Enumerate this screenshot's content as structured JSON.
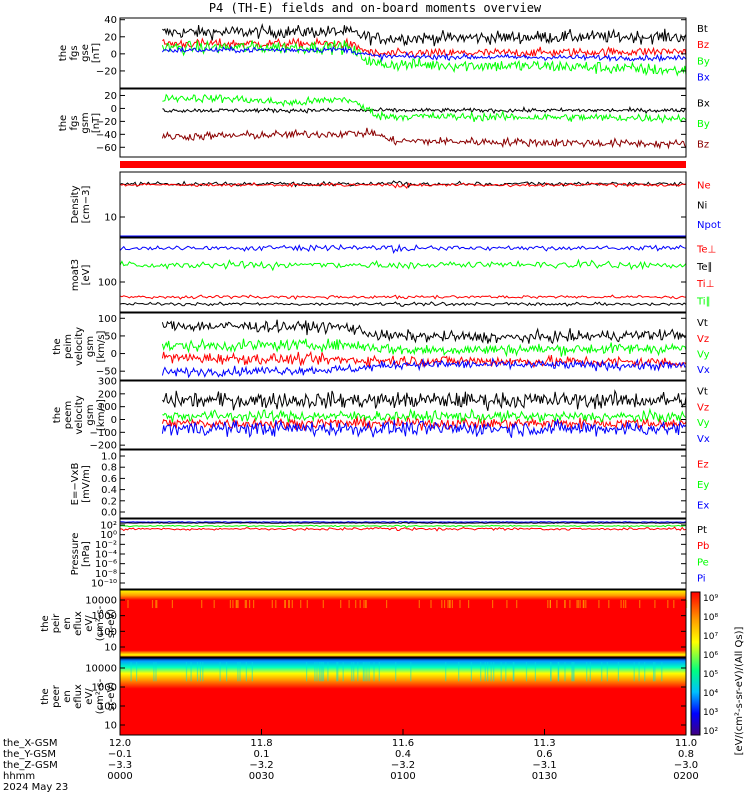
{
  "title": "P4 (TH-E) fields and on-board moments overview",
  "colors": {
    "black": "#000000",
    "red": "#ff0000",
    "green": "#00ff00",
    "blue": "#0000ff",
    "darkred": "#8b0000"
  },
  "chart_data": [
    {
      "type": "line",
      "ylabel": [
        "the",
        "fgs",
        "gse",
        "[nT]"
      ],
      "ylim": [
        -40,
        42
      ],
      "yticks": [
        "40",
        "20",
        "0",
        "−20"
      ],
      "series": [
        {
          "name": "Bt",
          "color": "#000000",
          "levels": [
            [
              0,
              25
            ],
            [
              0.4,
              26
            ],
            [
              0.45,
              18
            ],
            [
              0.8,
              20
            ],
            [
              1,
              20
            ]
          ],
          "noise": 7
        },
        {
          "name": "Bz",
          "color": "#ff0000",
          "levels": [
            [
              0,
              12
            ],
            [
              0.4,
              12
            ],
            [
              0.45,
              0
            ],
            [
              1,
              3
            ]
          ],
          "noise": 5
        },
        {
          "name": "By",
          "color": "#00ff00",
          "levels": [
            [
              0,
              7
            ],
            [
              0.4,
              8
            ],
            [
              0.45,
              -12
            ],
            [
              0.8,
              -15
            ],
            [
              1,
              -20
            ]
          ],
          "noise": 7
        },
        {
          "name": "Bx",
          "color": "#0000ff",
          "levels": [
            [
              0,
              4
            ],
            [
              0.4,
              5
            ],
            [
              0.45,
              -3
            ],
            [
              1,
              -5
            ]
          ],
          "noise": 3
        }
      ]
    },
    {
      "type": "line",
      "ylabel": [
        "the",
        "fgs",
        "gsm",
        "[nT]"
      ],
      "ylim": [
        -75,
        30
      ],
      "yticks": [
        "20",
        "0",
        "−20",
        "−40",
        "−60"
      ],
      "series": [
        {
          "name": "Bx",
          "color": "#000000",
          "levels": [
            [
              0,
              -3
            ],
            [
              1,
              -3
            ]
          ],
          "noise": 3
        },
        {
          "name": "By",
          "color": "#00ff00",
          "levels": [
            [
              0,
              18
            ],
            [
              0.2,
              15
            ],
            [
              0.3,
              8
            ],
            [
              0.4,
              15
            ],
            [
              0.46,
              -12
            ],
            [
              1,
              -15
            ]
          ],
          "noise": 6
        },
        {
          "name": "Bz",
          "color": "#8b0000",
          "levels": [
            [
              0,
              -45
            ],
            [
              0.45,
              -38
            ],
            [
              0.48,
              -50
            ],
            [
              1,
              -55
            ]
          ],
          "noise": 6
        }
      ]
    },
    {
      "type": "line",
      "ylabel": [
        "Density",
        "[cm−3]"
      ],
      "yticks": [
        "10"
      ],
      "series": [
        {
          "name": "Ne",
          "color": "#ff0000"
        },
        {
          "name": "Ni",
          "color": "#000000"
        },
        {
          "name": "Npot",
          "color": "#0000ff"
        }
      ]
    },
    {
      "type": "line",
      "ylabel": [
        "moat3",
        "[eV]"
      ],
      "yticks": [
        "100"
      ],
      "series": [
        {
          "name": "Te⊥",
          "color": "#ff0000"
        },
        {
          "name": "Te∥",
          "color": "#000000"
        },
        {
          "name": "Ti⊥",
          "color": "#ff0000"
        },
        {
          "name": "Ti∥",
          "color": "#00ff00"
        }
      ]
    },
    {
      "type": "line",
      "ylabel": [
        "the",
        "peim",
        "velocity",
        "gsm",
        "[km/s]"
      ],
      "ylim": [
        -75,
        115
      ],
      "yticks": [
        "100",
        "50",
        "0",
        "−50"
      ],
      "series": [
        {
          "name": "Vt",
          "color": "#000000",
          "levels": [
            [
              0,
              80
            ],
            [
              0.4,
              75
            ],
            [
              0.46,
              50
            ],
            [
              0.7,
              45
            ],
            [
              1,
              55
            ]
          ],
          "noise": 15
        },
        {
          "name": "Vz",
          "color": "#ff0000",
          "levels": [
            [
              0,
              -10
            ],
            [
              0.5,
              -20
            ],
            [
              1,
              -25
            ]
          ],
          "noise": 15
        },
        {
          "name": "Vy",
          "color": "#00ff00",
          "levels": [
            [
              0,
              20
            ],
            [
              0.4,
              25
            ],
            [
              0.5,
              10
            ],
            [
              1,
              15
            ]
          ],
          "noise": 15
        },
        {
          "name": "Vx",
          "color": "#0000ff",
          "levels": [
            [
              0,
              -55
            ],
            [
              0.4,
              -45
            ],
            [
              0.5,
              -30
            ],
            [
              1,
              -35
            ]
          ],
          "noise": 12
        }
      ]
    },
    {
      "type": "line",
      "ylabel": [
        "the",
        "peem",
        "velocity",
        "gsm",
        "[km/s]"
      ],
      "ylim": [
        -230,
        300
      ],
      "yticks": [
        "300",
        "200",
        "100",
        "0",
        "−100",
        "−200"
      ],
      "series": [
        {
          "name": "Vt",
          "color": "#000000",
          "levels": [
            [
              0,
              150
            ],
            [
              1,
              150
            ]
          ],
          "noise": 60
        },
        {
          "name": "Vz",
          "color": "#ff0000",
          "levels": [
            [
              0,
              -30
            ],
            [
              1,
              -30
            ]
          ],
          "noise": 40
        },
        {
          "name": "Vy",
          "color": "#00ff00",
          "levels": [
            [
              0,
              30
            ],
            [
              1,
              20
            ]
          ],
          "noise": 40
        },
        {
          "name": "Vx",
          "color": "#0000ff",
          "levels": [
            [
              0,
              -70
            ],
            [
              1,
              -70
            ]
          ],
          "noise": 55
        }
      ]
    },
    {
      "type": "line",
      "ylabel": [
        "E=−VxB",
        "[mV/m]"
      ],
      "ylim": [
        0,
        1
      ],
      "yticks": [
        "1.0",
        "0.8",
        "0.6",
        "0.4",
        "0.2",
        "0.0"
      ],
      "series": [
        {
          "name": "Ez",
          "color": "#ff0000"
        },
        {
          "name": "Ey",
          "color": "#00ff00"
        },
        {
          "name": "Ex",
          "color": "#0000ff"
        }
      ]
    },
    {
      "type": "line",
      "ylabel": [
        "Pressure",
        "[nPa]"
      ],
      "yticks": [
        "10²",
        "10⁰",
        "10⁻²",
        "10⁻⁴",
        "10⁻⁶",
        "10⁻⁸",
        "10⁻¹⁰"
      ],
      "series": [
        {
          "name": "Pt",
          "color": "#000000"
        },
        {
          "name": "Pb",
          "color": "#ff0000"
        },
        {
          "name": "Pe",
          "color": "#00ff00"
        },
        {
          "name": "Pi",
          "color": "#0000ff"
        }
      ]
    },
    {
      "type": "heatmap",
      "ylabel": [
        "the",
        "peir",
        "en",
        "eflux",
        "eV/",
        "(cm²-s-",
        "sr-eV)"
      ],
      "yticks": [
        "10000",
        "1000",
        "100",
        "10"
      ]
    },
    {
      "type": "heatmap",
      "ylabel": [
        "the",
        "peer",
        "en",
        "eflux",
        "eV/",
        "(cm²-s-",
        "sr-eV)"
      ],
      "yticks": [
        "10000",
        "1000",
        "100",
        "10"
      ]
    }
  ],
  "colorbar": {
    "label": "[eV/(cm²-s-sr-eV)/(All Qs)]",
    "ticks": [
      "10⁹",
      "10⁸",
      "10⁷",
      "10⁶",
      "10⁵",
      "10⁴",
      "10³",
      "10²"
    ]
  },
  "x_axis": {
    "rows": [
      {
        "label": "the_X-GSM",
        "values": [
          "12.0",
          "11.8",
          "11.6",
          "11.3",
          "11.0"
        ]
      },
      {
        "label": "the_Y-GSM",
        "values": [
          "−0.1",
          "0.1",
          "0.4",
          "0.6",
          "0.8"
        ]
      },
      {
        "label": "the_Z-GSM",
        "values": [
          "−3.3",
          "−3.2",
          "−3.2",
          "−3.1",
          "−3.0"
        ]
      },
      {
        "label": "hhmm",
        "values": [
          "0000",
          "0030",
          "0100",
          "0130",
          "0200"
        ]
      }
    ],
    "date": "2024 May 23"
  }
}
